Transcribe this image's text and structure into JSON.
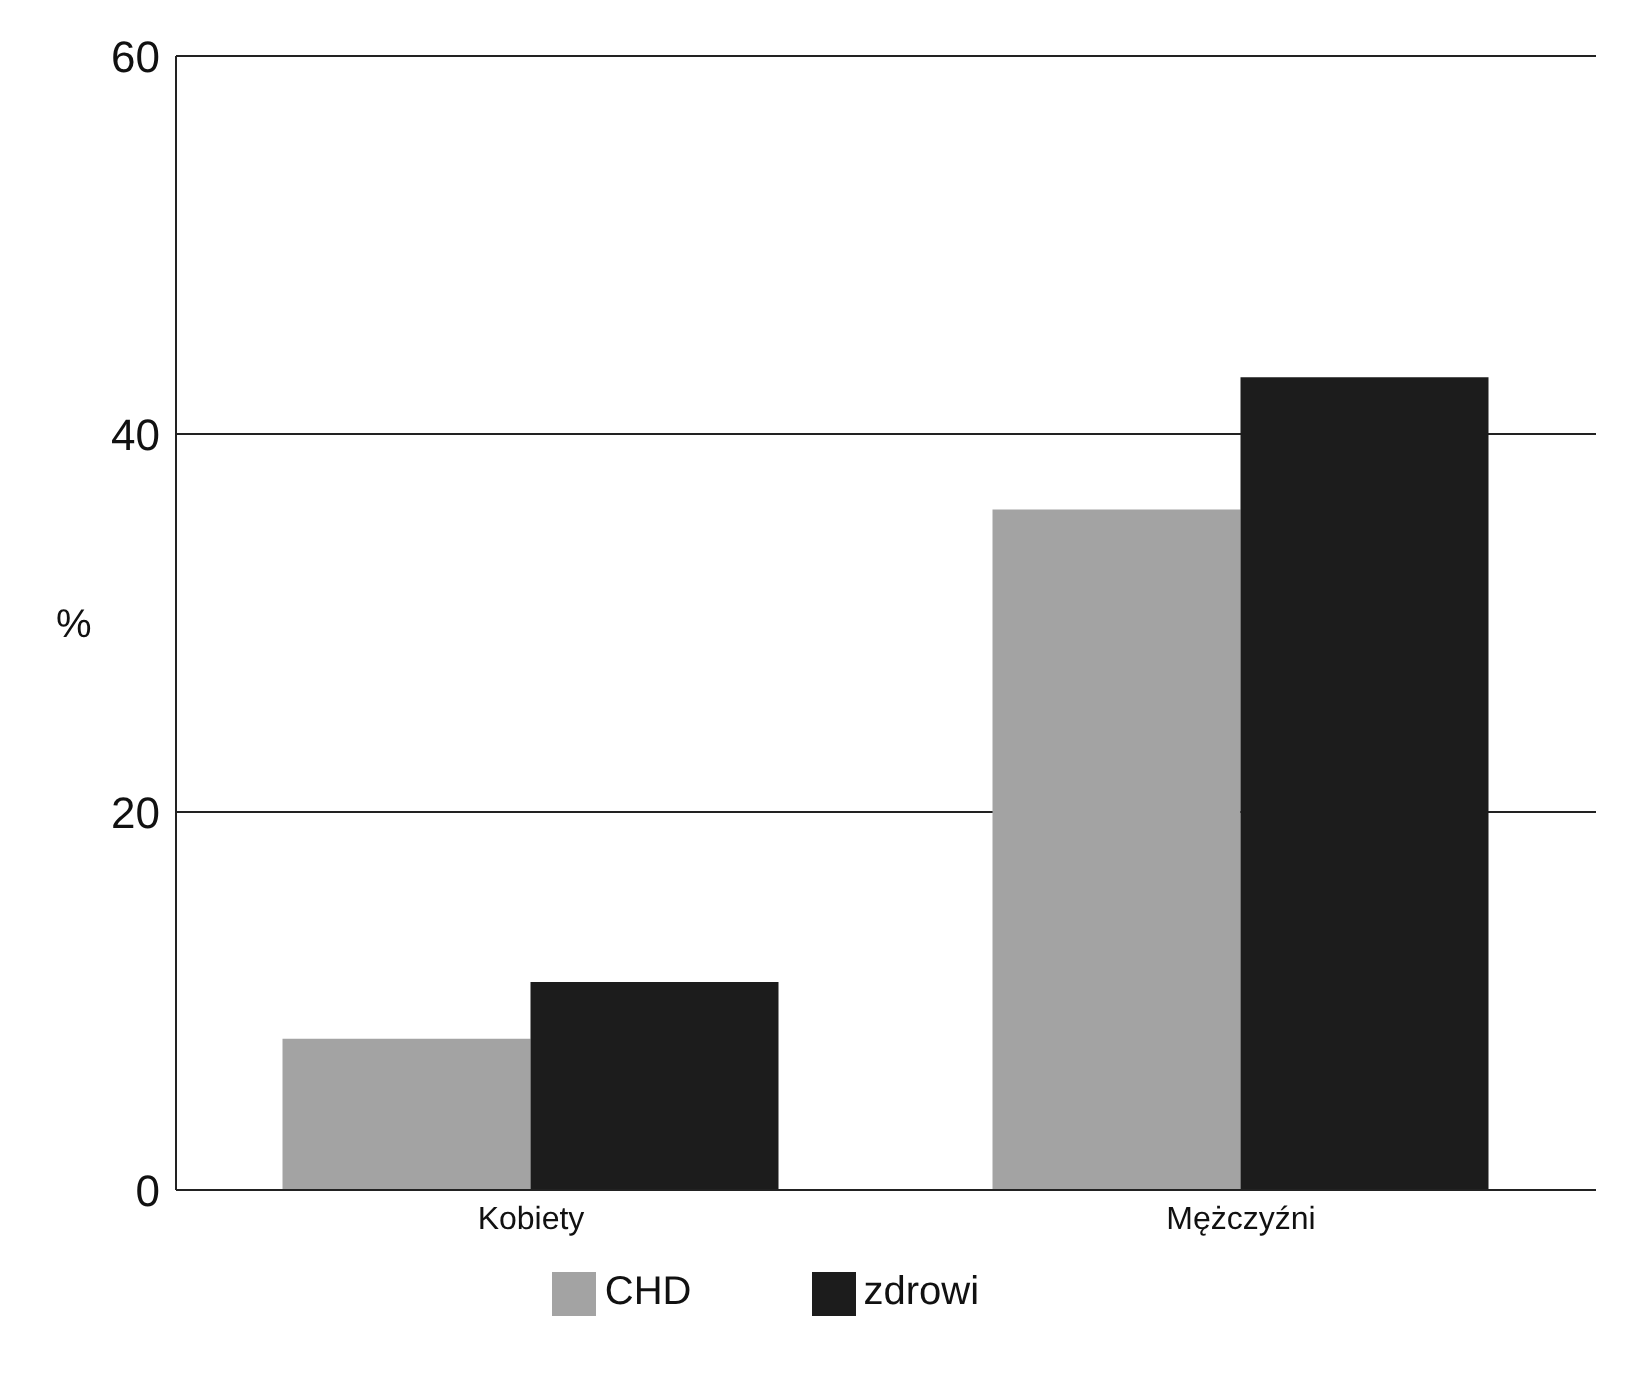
{
  "chart_data": {
    "type": "bar",
    "ylabel": "%",
    "categories": [
      "Kobiety",
      "Mężczyźni"
    ],
    "series": [
      {
        "name": "CHD",
        "color": "#a3a3a3",
        "values": [
          8,
          36
        ]
      },
      {
        "name": "zdrowi",
        "color": "#1c1c1c",
        "values": [
          11,
          43
        ]
      }
    ],
    "ylim": [
      0,
      60
    ],
    "yticks": [
      0,
      20,
      40,
      60
    ],
    "grid": "y",
    "legend": "bottom"
  }
}
